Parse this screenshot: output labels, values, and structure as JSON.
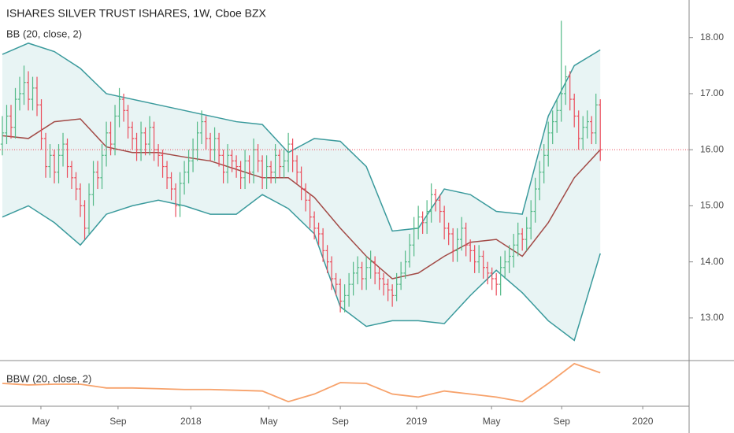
{
  "chart_data": [
    {
      "type": "ohlc",
      "title": "ISHARES SILVER TRUST ISHARES, 1W, Cboe BZX",
      "subtitle": "BB (20, close, 2)",
      "up_color": "#53b987",
      "down_color": "#eb4d5c",
      "open": [
        16.1,
        16.3,
        16.6,
        16.4,
        16.9,
        17.0,
        17.2,
        16.9,
        17.1,
        16.8,
        16.2,
        15.7,
        15.9,
        15.6,
        15.9,
        16.1,
        15.7,
        15.5,
        15.3,
        15.0,
        14.6,
        15.2,
        15.6,
        15.5,
        15.9,
        16.3,
        16.1,
        16.6,
        16.9,
        16.7,
        16.4,
        16.2,
        16.0,
        16.3,
        16.1,
        16.4,
        16.0,
        15.9,
        15.7,
        15.5,
        15.3,
        15.0,
        15.4,
        15.6,
        15.8,
        16.0,
        16.3,
        16.5,
        16.2,
        16.0,
        16.2,
        15.9,
        15.6,
        15.9,
        15.8,
        15.7,
        15.5,
        15.8,
        15.6,
        16.0,
        15.8,
        15.5,
        15.7,
        15.6,
        15.9,
        15.7,
        15.8,
        16.1,
        15.8,
        15.6,
        15.3,
        15.1,
        14.8,
        14.6,
        14.5,
        14.2,
        14.0,
        13.7,
        13.6,
        13.3,
        13.4,
        13.6,
        13.8,
        13.9,
        13.7,
        13.9,
        14.0,
        13.8,
        13.7,
        13.6,
        13.5,
        13.4,
        13.6,
        13.8,
        14.0,
        14.3,
        14.6,
        14.8,
        14.7,
        14.9,
        15.2,
        15.1,
        14.9,
        14.6,
        14.5,
        14.2,
        14.4,
        14.6,
        14.3,
        14.2,
        14.0,
        14.1,
        13.9,
        13.8,
        13.7,
        13.6,
        13.9,
        14.0,
        14.1,
        14.3,
        14.5,
        14.4,
        14.6,
        14.9,
        15.3,
        15.6,
        15.9,
        16.3,
        16.5,
        16.7,
        17.0,
        17.3,
        16.9,
        16.6,
        16.2,
        16.4,
        16.5,
        16.3,
        16.8
      ],
      "high": [
        16.6,
        16.8,
        16.8,
        17.1,
        17.3,
        17.5,
        17.4,
        17.3,
        17.3,
        16.9,
        16.3,
        16.1,
        16.0,
        16.1,
        16.3,
        16.2,
        15.8,
        15.6,
        15.4,
        15.1,
        15.4,
        15.8,
        15.8,
        16.1,
        16.5,
        16.5,
        16.8,
        17.1,
        17.0,
        16.8,
        16.5,
        16.3,
        16.5,
        16.4,
        16.6,
        16.5,
        16.1,
        16.0,
        15.8,
        15.6,
        15.4,
        15.6,
        15.8,
        16.0,
        16.2,
        16.5,
        16.7,
        16.6,
        16.3,
        16.4,
        16.3,
        16.0,
        16.1,
        16.0,
        15.9,
        15.8,
        16.0,
        15.9,
        16.2,
        16.1,
        15.9,
        15.9,
        15.8,
        16.1,
        16.0,
        16.0,
        16.3,
        16.2,
        15.9,
        15.7,
        15.4,
        15.2,
        14.9,
        14.7,
        14.6,
        14.3,
        14.1,
        13.8,
        13.7,
        13.6,
        13.8,
        14.0,
        14.1,
        14.0,
        14.1,
        14.2,
        14.1,
        13.9,
        13.8,
        13.7,
        13.6,
        13.8,
        14.0,
        14.2,
        14.5,
        14.8,
        15.0,
        14.9,
        15.1,
        15.4,
        15.3,
        15.2,
        15.0,
        14.7,
        14.6,
        14.6,
        14.8,
        14.7,
        14.4,
        14.3,
        14.3,
        14.2,
        14.0,
        13.9,
        13.8,
        14.1,
        14.2,
        14.3,
        14.5,
        14.7,
        14.6,
        14.8,
        15.1,
        15.5,
        15.8,
        16.1,
        16.5,
        16.7,
        16.9,
        18.3,
        17.5,
        17.4,
        17.0,
        16.7,
        16.6,
        16.7,
        16.6,
        17.0,
        16.9
      ],
      "low": [
        15.9,
        16.1,
        16.2,
        16.2,
        16.7,
        16.8,
        16.7,
        16.7,
        16.6,
        16.0,
        15.5,
        15.5,
        15.4,
        15.4,
        15.7,
        15.5,
        15.3,
        15.1,
        14.8,
        14.4,
        14.5,
        15.0,
        15.3,
        15.3,
        15.7,
        15.9,
        15.9,
        16.4,
        16.5,
        16.2,
        16.0,
        15.8,
        15.8,
        15.9,
        15.9,
        15.8,
        15.7,
        15.5,
        15.3,
        15.1,
        14.8,
        14.8,
        15.2,
        15.4,
        15.6,
        15.8,
        16.1,
        16.0,
        15.8,
        15.8,
        15.7,
        15.4,
        15.4,
        15.6,
        15.5,
        15.3,
        15.3,
        15.4,
        15.4,
        15.6,
        15.3,
        15.3,
        15.4,
        15.4,
        15.5,
        15.5,
        15.6,
        15.6,
        15.4,
        15.1,
        14.9,
        14.6,
        14.4,
        14.3,
        14.0,
        13.8,
        13.5,
        13.4,
        13.1,
        13.1,
        13.2,
        13.4,
        13.6,
        13.5,
        13.5,
        13.7,
        13.6,
        13.5,
        13.4,
        13.3,
        13.2,
        13.3,
        13.5,
        13.7,
        13.9,
        14.1,
        14.4,
        14.5,
        14.5,
        14.7,
        14.9,
        14.7,
        14.4,
        14.3,
        14.0,
        14.0,
        14.2,
        14.1,
        14.0,
        13.8,
        13.8,
        13.7,
        13.6,
        13.5,
        13.4,
        13.4,
        13.7,
        13.8,
        13.9,
        14.1,
        14.2,
        14.2,
        14.4,
        14.7,
        15.1,
        15.4,
        15.7,
        16.1,
        16.3,
        16.5,
        16.8,
        16.7,
        16.4,
        16.0,
        16.0,
        16.2,
        16.1,
        16.1,
        15.8
      ],
      "close": [
        16.3,
        16.6,
        16.4,
        16.9,
        17.0,
        17.2,
        16.9,
        17.1,
        16.8,
        16.2,
        15.7,
        15.9,
        15.6,
        15.9,
        16.1,
        15.7,
        15.5,
        15.3,
        15.0,
        14.6,
        15.2,
        15.6,
        15.5,
        15.9,
        16.3,
        16.1,
        16.6,
        16.9,
        16.7,
        16.4,
        16.2,
        16.0,
        16.3,
        16.1,
        16.4,
        16.0,
        15.9,
        15.7,
        15.5,
        15.3,
        15.0,
        15.4,
        15.6,
        15.8,
        16.0,
        16.3,
        16.5,
        16.2,
        16.0,
        16.2,
        15.9,
        15.6,
        15.9,
        15.8,
        15.7,
        15.5,
        15.8,
        15.6,
        16.0,
        15.8,
        15.5,
        15.7,
        15.6,
        15.9,
        15.7,
        15.8,
        16.1,
        15.8,
        15.6,
        15.3,
        15.1,
        14.8,
        14.6,
        14.5,
        14.2,
        14.0,
        13.7,
        13.6,
        13.3,
        13.4,
        13.6,
        13.8,
        13.9,
        13.7,
        13.9,
        14.0,
        13.8,
        13.7,
        13.6,
        13.5,
        13.4,
        13.6,
        13.8,
        14.0,
        14.3,
        14.6,
        14.8,
        14.7,
        14.9,
        15.2,
        15.1,
        14.9,
        14.6,
        14.5,
        14.2,
        14.4,
        14.6,
        14.3,
        14.2,
        14.0,
        14.1,
        13.9,
        13.8,
        13.7,
        13.6,
        13.9,
        14.0,
        14.1,
        14.3,
        14.5,
        14.4,
        14.6,
        14.9,
        15.3,
        15.6,
        15.9,
        16.3,
        16.5,
        16.7,
        17.0,
        17.3,
        16.9,
        16.6,
        16.2,
        16.4,
        16.5,
        16.3,
        16.8,
        16.0
      ],
      "bands": {
        "x": [
          0,
          6,
          12,
          18,
          24,
          30,
          36,
          42,
          48,
          54,
          60,
          66,
          72,
          78,
          84,
          90,
          96,
          102,
          108,
          114,
          120,
          126,
          132,
          138
        ],
        "upper": [
          17.7,
          17.9,
          17.75,
          17.45,
          17.0,
          16.9,
          16.8,
          16.7,
          16.6,
          16.5,
          16.45,
          15.95,
          16.2,
          16.15,
          15.7,
          14.55,
          14.6,
          15.3,
          15.2,
          14.9,
          14.85,
          16.6,
          17.5,
          17.78
        ],
        "middle": [
          16.25,
          16.2,
          16.5,
          16.55,
          16.05,
          15.95,
          15.95,
          15.87,
          15.8,
          15.65,
          15.5,
          15.5,
          15.15,
          14.6,
          14.1,
          13.7,
          13.8,
          14.1,
          14.35,
          14.4,
          14.1,
          14.7,
          15.5,
          16.0
        ],
        "lower": [
          14.8,
          15.0,
          14.7,
          14.3,
          14.85,
          15.0,
          15.1,
          15.0,
          14.85,
          14.85,
          15.2,
          14.95,
          14.5,
          13.2,
          12.85,
          12.95,
          12.95,
          12.9,
          13.4,
          13.85,
          13.45,
          12.95,
          12.6,
          14.15
        ],
        "band_color": "#3a9a9c",
        "middle_color": "#a24a46",
        "fill": "#e8f4f4"
      },
      "xlim": [
        -0.545,
        158.5
      ],
      "xticks": [
        {
          "value": 8.9,
          "label": "May"
        },
        {
          "value": 26.7,
          "label": "Sep"
        },
        {
          "value": 43.5,
          "label": "2018"
        },
        {
          "value": 61.5,
          "label": "May"
        },
        {
          "value": 78,
          "label": "Sep"
        },
        {
          "value": 95.6,
          "label": "2019"
        },
        {
          "value": 112.9,
          "label": "May"
        },
        {
          "value": 129.1,
          "label": "Sep"
        },
        {
          "value": 147.8,
          "label": "2020"
        }
      ],
      "ylim": [
        12.24,
        18.67
      ],
      "yticks": [
        {
          "value": 13,
          "label": "13.00"
        },
        {
          "value": 14,
          "label": "14.00"
        },
        {
          "value": 15,
          "label": "15.00"
        },
        {
          "value": 16,
          "label": "16.00"
        },
        {
          "value": 17,
          "label": "17.00"
        },
        {
          "value": 18,
          "label": "18.00"
        }
      ]
    },
    {
      "type": "line",
      "title": "BBW (20, close, 2)",
      "x": [
        0,
        6,
        12,
        18,
        24,
        30,
        36,
        42,
        48,
        54,
        60,
        66,
        72,
        78,
        84,
        90,
        96,
        102,
        108,
        114,
        120,
        126,
        132,
        138
      ],
      "values": [
        0.19,
        0.18,
        0.185,
        0.185,
        0.16,
        0.16,
        0.155,
        0.15,
        0.15,
        0.145,
        0.14,
        0.07,
        0.12,
        0.195,
        0.19,
        0.12,
        0.1,
        0.14,
        0.12,
        0.1,
        0.07,
        0.19,
        0.32,
        0.26
      ],
      "color": "#f7a26b",
      "ylim": [
        0.04,
        0.34
      ]
    }
  ]
}
